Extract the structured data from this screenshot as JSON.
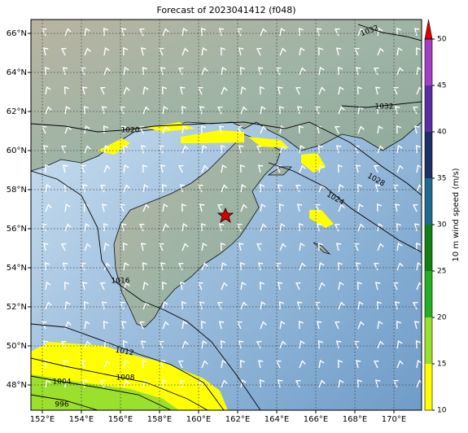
{
  "map": {
    "title": "Forecast of 2023041412 (f048)",
    "lon_ticks": [
      {
        "value": 152,
        "label": "152°E"
      },
      {
        "value": 154,
        "label": "154°E"
      },
      {
        "value": 156,
        "label": "156°E"
      },
      {
        "value": 158,
        "label": "158°E"
      },
      {
        "value": 160,
        "label": "160°E"
      },
      {
        "value": 162,
        "label": "162°E"
      },
      {
        "value": 164,
        "label": "164°E"
      },
      {
        "value": 166,
        "label": "166°E"
      },
      {
        "value": 168,
        "label": "168°E"
      },
      {
        "value": 170,
        "label": "170°E"
      }
    ],
    "lat_ticks": [
      {
        "value": 48,
        "label": "48°N"
      },
      {
        "value": 50,
        "label": "50°N"
      },
      {
        "value": 52,
        "label": "52°N"
      },
      {
        "value": 54,
        "label": "54°N"
      },
      {
        "value": 56,
        "label": "56°N"
      },
      {
        "value": 58,
        "label": "58°N"
      },
      {
        "value": 60,
        "label": "60°N"
      },
      {
        "value": 62,
        "label": "62°N"
      },
      {
        "value": 64,
        "label": "64°N"
      },
      {
        "value": 66,
        "label": "66°N"
      }
    ],
    "colorbar": {
      "label": "10 m wind speed (m/s)",
      "ticks": [
        10,
        15,
        20,
        25,
        30,
        35,
        40,
        45,
        50
      ],
      "lim": [
        10,
        50
      ],
      "colors": [
        "#ffff00",
        "#9be02c",
        "#22b022",
        "#118011",
        "#1f6b8f",
        "#1d2f66",
        "#5a2ea0",
        "#a43fc4"
      ],
      "extend_color": "#e00000"
    },
    "contour_labels": [
      "1032",
      "1032",
      "1020",
      "1028",
      "1024",
      "1016",
      "1012",
      "1008",
      "1004",
      "996"
    ]
  }
}
